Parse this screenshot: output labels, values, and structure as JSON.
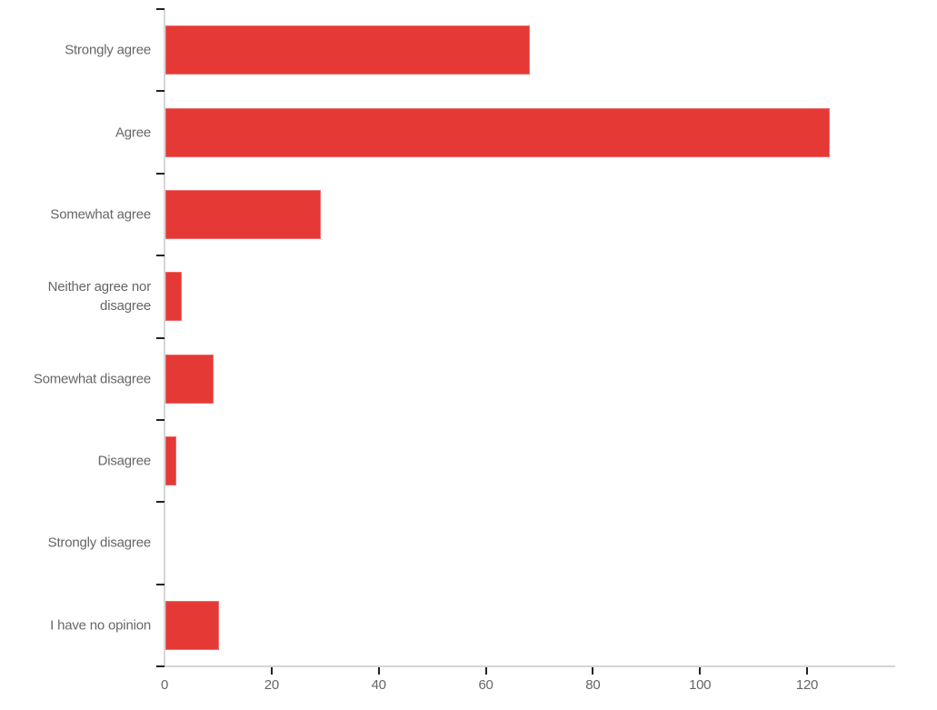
{
  "chart_data": {
    "type": "bar",
    "orientation": "horizontal",
    "title": "",
    "xlabel": "",
    "ylabel": "",
    "categories": [
      "Strongly agree",
      "Agree",
      "Somewhat agree",
      "Neither agree nor disagree",
      "Somewhat disagree",
      "Disagree",
      "Strongly disagree",
      "I have no opinion"
    ],
    "category_lines": [
      [
        "Strongly agree"
      ],
      [
        "Agree"
      ],
      [
        "Somewhat agree"
      ],
      [
        "Neither agree nor",
        "disagree"
      ],
      [
        "Somewhat disagree"
      ],
      [
        "Disagree"
      ],
      [
        "Strongly disagree"
      ],
      [
        "I have no opinion"
      ]
    ],
    "values": [
      68,
      124,
      29,
      3,
      9,
      2,
      0,
      10
    ],
    "xlim": [
      0,
      136
    ],
    "x_ticks": [
      0,
      20,
      40,
      60,
      80,
      100,
      120
    ],
    "grid": false,
    "legend": null,
    "bar_color": "#E53935"
  }
}
